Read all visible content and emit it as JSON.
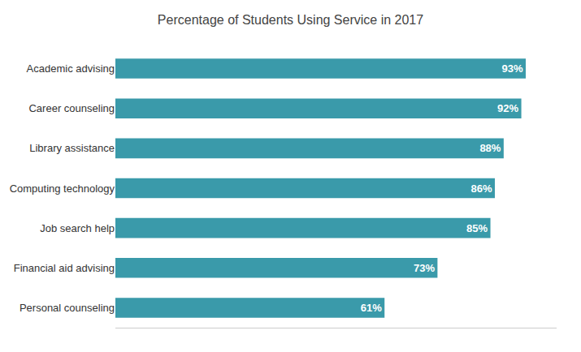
{
  "chart_data": {
    "type": "bar",
    "orientation": "horizontal",
    "title": "Percentage of Students Using Service in 2017",
    "categories": [
      "Personal counseling",
      "Financial aid advising",
      "Job search help",
      "Computing technology",
      "Library assistance",
      "Career counseling",
      "Academic advising"
    ],
    "values": [
      61,
      73,
      85,
      86,
      88,
      92,
      93
    ],
    "value_labels": [
      "61%",
      "73%",
      "85%",
      "86%",
      "88%",
      "92%",
      "93%"
    ],
    "color": "#3a9aaa",
    "xlim": [
      0,
      100
    ],
    "data_labels": true,
    "tick_labels": "y",
    "grid": false
  }
}
